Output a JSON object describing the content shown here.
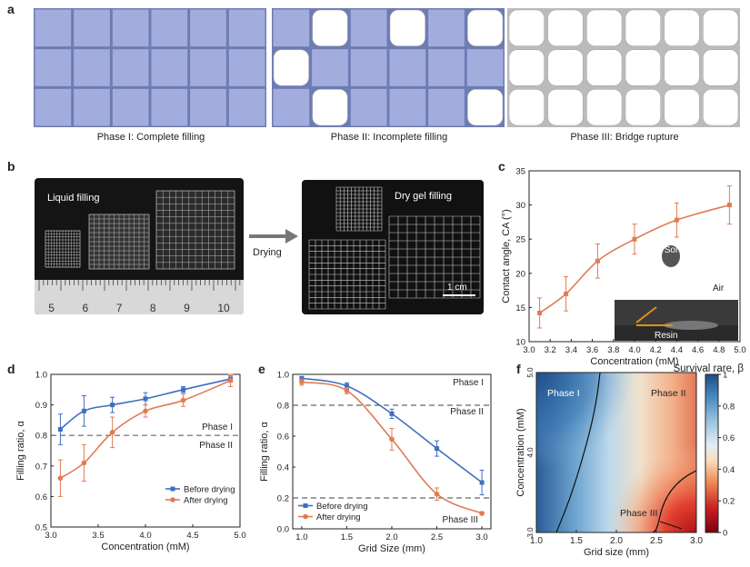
{
  "panel_labels": {
    "a": "a",
    "b": "b",
    "c": "c",
    "d": "d",
    "e": "e",
    "f": "f"
  },
  "panel_a": {
    "phases": [
      {
        "caption": "Phase I: Complete filling"
      },
      {
        "caption": "Phase II: Incomplete filling"
      },
      {
        "caption": "Phase III: Bridge rupture"
      }
    ]
  },
  "panel_b": {
    "left_label": "Liquid filling",
    "right_label": "Dry gel filling",
    "arrow_label": "Drying",
    "scale_label": "1 cm",
    "ruler_numbers": [
      "5",
      "6",
      "7",
      "8",
      "9",
      "10"
    ]
  },
  "chart_data": [
    {
      "id": "c",
      "type": "line",
      "xlabel": "Concentration (mM)",
      "ylabel": "Contact angle, CA (°)",
      "xlim": [
        3.0,
        5.0
      ],
      "ylim": [
        10,
        35
      ],
      "xticks": [
        "3.0",
        "3.2",
        "3.4",
        "3.6",
        "3.8",
        "4.0",
        "4.2",
        "4.4",
        "4.6",
        "4.8",
        "5.0"
      ],
      "yticks": [
        "10",
        "15",
        "20",
        "25",
        "30",
        "35"
      ],
      "x": [
        3.1,
        3.35,
        3.65,
        4.0,
        4.4,
        4.9
      ],
      "y": [
        14.2,
        17.0,
        21.8,
        25.0,
        27.8,
        30.0
      ],
      "err": [
        2.2,
        2.5,
        2.5,
        2.2,
        2.5,
        2.8
      ],
      "color": "#e07b53",
      "inset_labels": {
        "sol": "Sol",
        "air": "Air",
        "resin": "Resin"
      }
    },
    {
      "id": "d",
      "type": "line",
      "xlabel": "Concentration (mM)",
      "ylabel": "Filling ratio, α",
      "xlim": [
        3.0,
        5.0
      ],
      "ylim": [
        0.5,
        1.0
      ],
      "xticks": [
        "3.0",
        "3.5",
        "4.0",
        "4.5",
        "5.0"
      ],
      "yticks": [
        "0.5",
        "0.6",
        "0.7",
        "0.8",
        "0.9",
        "1.0"
      ],
      "series": [
        {
          "name": "Before drying",
          "color": "#3f6fc0",
          "x": [
            3.1,
            3.35,
            3.65,
            4.0,
            4.4,
            4.9
          ],
          "y": [
            0.82,
            0.88,
            0.9,
            0.92,
            0.95,
            0.985
          ],
          "err": [
            0.05,
            0.05,
            0.025,
            0.02,
            0.01,
            0.01
          ]
        },
        {
          "name": "After drying",
          "color": "#e07b53",
          "x": [
            3.1,
            3.35,
            3.65,
            4.0,
            4.4,
            4.9
          ],
          "y": [
            0.66,
            0.71,
            0.81,
            0.88,
            0.915,
            0.98
          ],
          "err": [
            0.06,
            0.06,
            0.05,
            0.02,
            0.02,
            0.02
          ]
        }
      ],
      "hline": 0.8,
      "hline_labels": [
        "Phase I",
        "Phase II"
      ],
      "legend": "bottom-right"
    },
    {
      "id": "e",
      "type": "line",
      "xlabel": "Grid Size (mm)",
      "ylabel": "Filling ratio, α",
      "xlim": [
        0.9,
        3.1
      ],
      "ylim": [
        0.0,
        1.0
      ],
      "xticks": [
        "1.0",
        "1.5",
        "2.0",
        "2.5",
        "3.0"
      ],
      "yticks": [
        "0.0",
        "0.2",
        "0.4",
        "0.6",
        "0.8",
        "1.0"
      ],
      "series": [
        {
          "name": "Before drying",
          "color": "#3f6fc0",
          "x": [
            1.0,
            1.5,
            2.0,
            2.5,
            3.0
          ],
          "y": [
            0.975,
            0.925,
            0.745,
            0.52,
            0.3
          ],
          "err": [
            0.01,
            0.02,
            0.03,
            0.05,
            0.08
          ]
        },
        {
          "name": "After drying",
          "color": "#e07b53",
          "x": [
            1.0,
            1.5,
            2.0,
            2.5,
            3.0
          ],
          "y": [
            0.95,
            0.895,
            0.58,
            0.225,
            0.1
          ],
          "err": [
            0.02,
            0.02,
            0.07,
            0.04,
            0.01
          ]
        }
      ],
      "hlines": [
        0.8,
        0.2
      ],
      "hline_labels": [
        "Phase I",
        "Phase II",
        "Phase III"
      ],
      "legend": "bottom-left"
    },
    {
      "id": "f",
      "type": "heatmap",
      "title": "Survival rare, β",
      "xlabel": "Grid size (mm)",
      "ylabel": "Concentration (mM)",
      "xticks": [
        "1.0",
        "1.5",
        "2.0",
        "2.5",
        "3.0"
      ],
      "yticks": [
        "3.0",
        "4.0",
        "5.0"
      ],
      "colorbar_ticks": [
        "0",
        "0.2",
        "0.4",
        "0.6",
        "0.8",
        "1"
      ],
      "region_labels": [
        "Phase I",
        "Phase II",
        "Phase III"
      ]
    }
  ]
}
